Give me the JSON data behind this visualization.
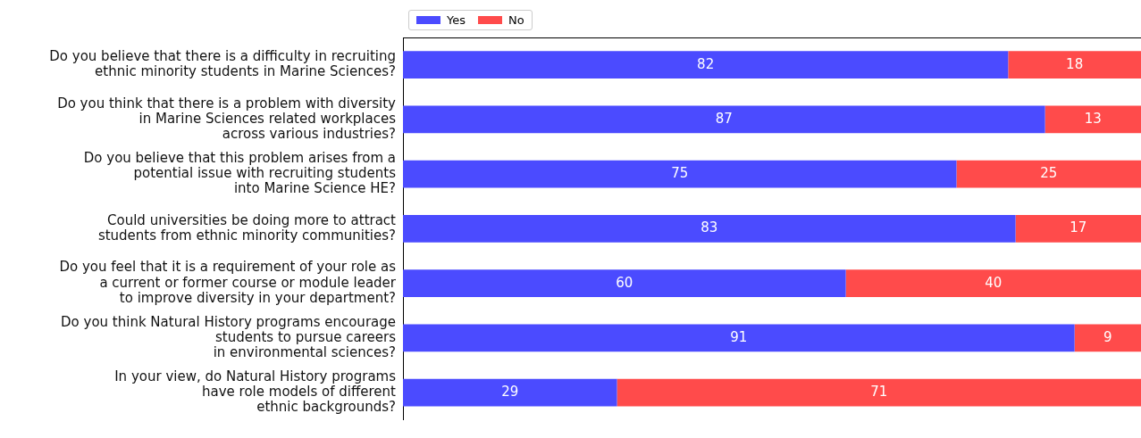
{
  "chart_data": {
    "type": "bar",
    "orientation": "horizontal",
    "stacked": true,
    "categories": [
      "Do you believe that there is a difficulty in recruiting\nethnic minority students in Marine Sciences?",
      "Do you think that there is a problem with diversity\nin Marine Sciences related workplaces\nacross various industries?",
      "Do you believe that this problem arises from a\npotential issue with recruiting students\ninto Marine Science HE?",
      "Could universities be doing more to attract\nstudents from ethnic minority communities?",
      "Do you feel that it is a requirement of your role as\na current or former course or module leader\nto improve diversity in your department?",
      "Do you think Natural History programs encourage\nstudents to pursue careers\nin environmental sciences?",
      "In your view, do Natural History programs\nhave role models of different\nethnic backgrounds?"
    ],
    "series": [
      {
        "name": "Yes",
        "color": "#4b4bff",
        "values": [
          82,
          87,
          75,
          83,
          60,
          91,
          29
        ]
      },
      {
        "name": "No",
        "color": "#ff4b4b",
        "values": [
          18,
          13,
          25,
          17,
          40,
          9,
          71
        ]
      }
    ],
    "xlim": [
      0,
      100
    ],
    "tick_labels": "y",
    "data_labels": true,
    "grid": false,
    "legend": "top left"
  }
}
